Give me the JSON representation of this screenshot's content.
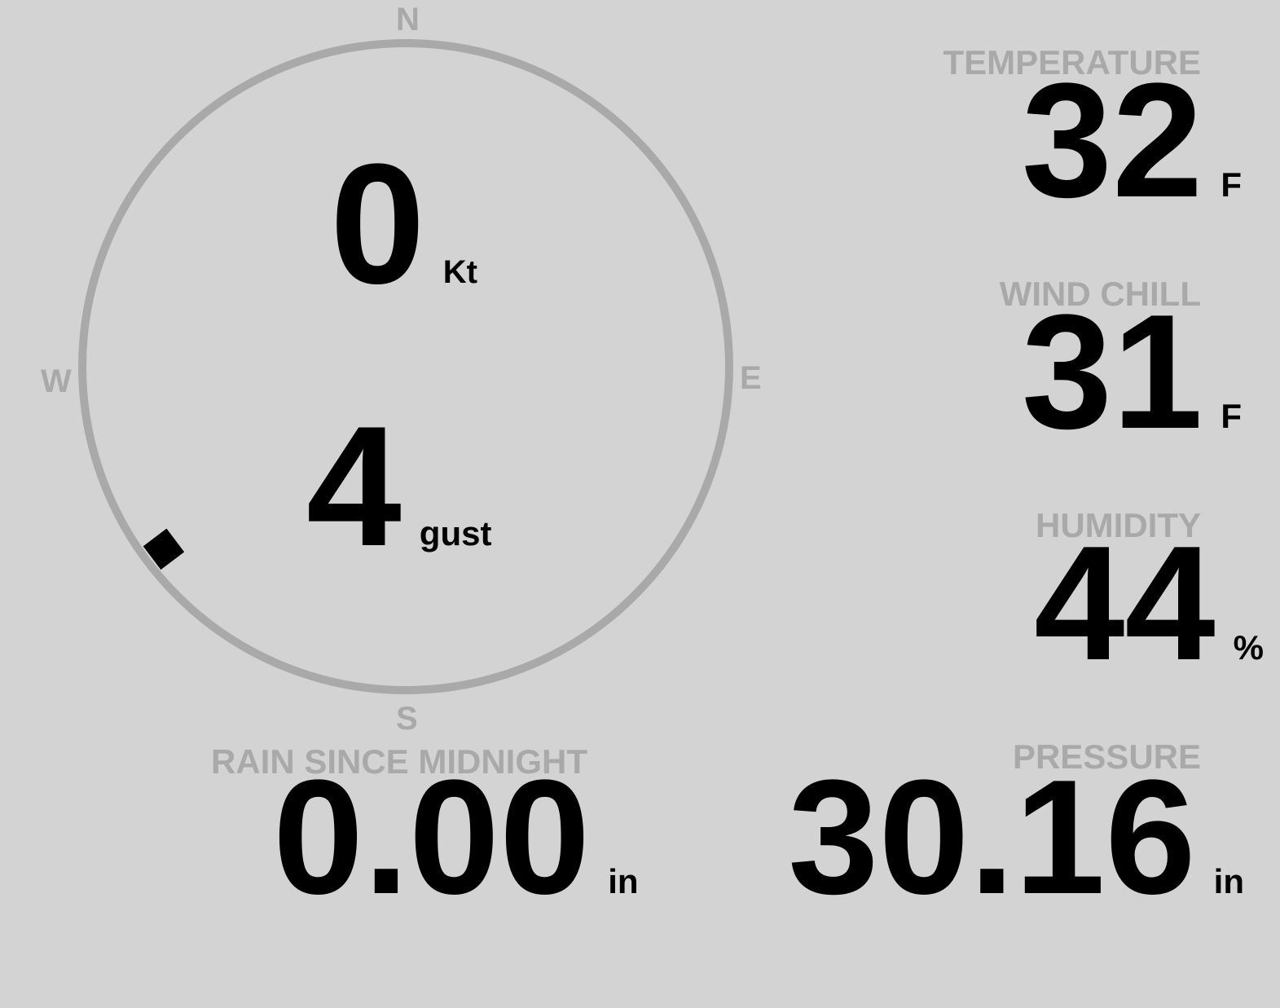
{
  "wind": {
    "compass": {
      "north": "N",
      "east": "E",
      "south": "S",
      "west": "W"
    },
    "speed": "0",
    "speed_unit": "Kt",
    "gust": "4",
    "gust_unit": "gust",
    "direction_deg": 233
  },
  "temperature": {
    "label": "TEMPERATURE",
    "value": "32",
    "unit": "F"
  },
  "wind_chill": {
    "label": "WIND CHILL",
    "value": "31",
    "unit": "F"
  },
  "humidity": {
    "label": "HUMIDITY",
    "value": "44",
    "unit": "%"
  },
  "rain": {
    "label": "RAIN SINCE MIDNIGHT",
    "value": "0.00",
    "unit": "in"
  },
  "pressure": {
    "label": "PRESSURE",
    "value": "30.16",
    "unit": "in"
  },
  "colors": {
    "background": "#d3d3d3",
    "label": "#a9a9a9",
    "value": "#000000",
    "dial": "#a9a9a9"
  }
}
